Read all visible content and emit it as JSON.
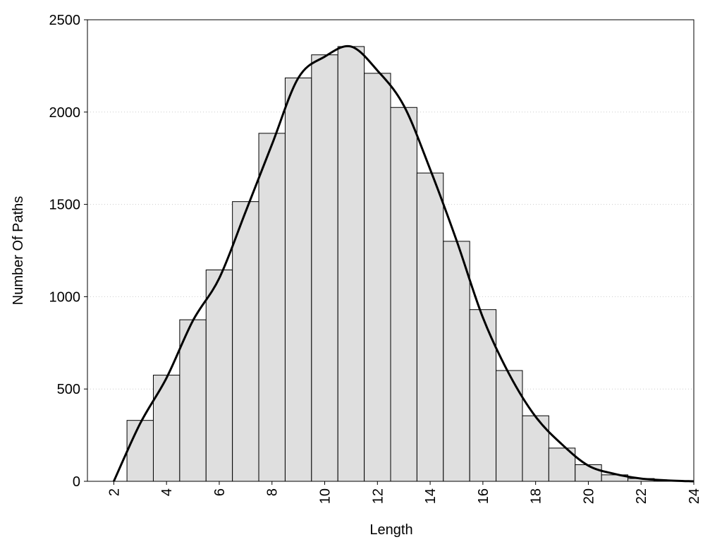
{
  "chart_data": {
    "type": "histogram",
    "xlabel": "Length",
    "ylabel": "Number Of Paths",
    "bins": [
      2.5,
      3.5,
      4.5,
      5.5,
      6.5,
      7.5,
      8.5,
      9.5,
      10.5,
      11.5,
      12.5,
      13.5,
      14.5,
      15.5,
      16.5,
      17.5,
      18.5,
      19.5,
      20.5,
      21.5,
      22.5,
      23.5
    ],
    "values": [
      330,
      575,
      875,
      1145,
      1515,
      1885,
      2185,
      2310,
      2355,
      2210,
      2025,
      1670,
      1300,
      930,
      600,
      355,
      180,
      90,
      35,
      15,
      5
    ],
    "color": "#dfdfdf",
    "line": {
      "x": [
        2,
        3,
        4,
        5,
        6,
        7,
        8,
        9,
        10,
        11,
        12,
        13,
        14,
        15,
        16,
        17,
        18,
        19,
        20,
        21,
        22,
        23,
        24
      ],
      "values": [
        0,
        313,
        560,
        870,
        1100,
        1460,
        1825,
        2185,
        2300,
        2355,
        2225,
        2035,
        1690,
        1305,
        887,
        580,
        350,
        200,
        85,
        40,
        15,
        5,
        0
      ],
      "color": "#000000"
    },
    "xlim": [
      1,
      24
    ],
    "xticks": [
      2,
      4,
      6,
      8,
      10,
      12,
      14,
      16,
      18,
      20,
      22,
      24
    ],
    "ylim": [
      0,
      2500
    ],
    "yticks": [
      0,
      500,
      1000,
      1500,
      2000,
      2500
    ],
    "grid": true
  }
}
